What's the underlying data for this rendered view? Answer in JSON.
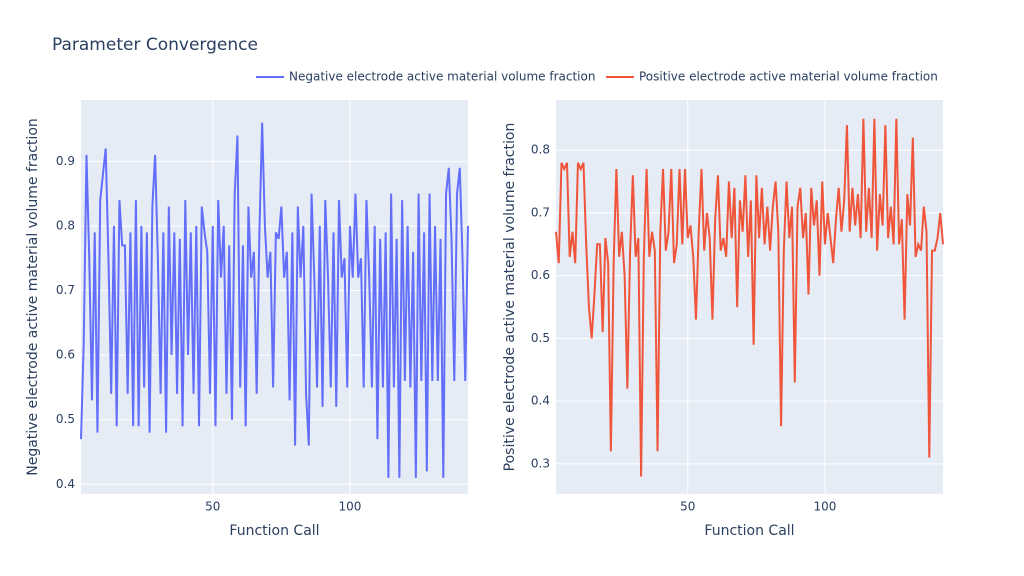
{
  "title": "Parameter Convergence",
  "chart_data": [
    {
      "type": "line",
      "x_label": "Function Call",
      "y_label": "Negative electrode active material volume fraction",
      "x": [
        2,
        3,
        4,
        5,
        6,
        7,
        8,
        9,
        10,
        11,
        12,
        13,
        14,
        15,
        16,
        17,
        18,
        19,
        20,
        21,
        22,
        23,
        24,
        25,
        26,
        27,
        28,
        29,
        30,
        31,
        32,
        33,
        34,
        35,
        36,
        37,
        38,
        39,
        40,
        41,
        42,
        43,
        44,
        45,
        46,
        47,
        48,
        49,
        50,
        51,
        52,
        53,
        54,
        55,
        56,
        57,
        58,
        59,
        60,
        61,
        62,
        63,
        64,
        65,
        66,
        67,
        68,
        69,
        70,
        71,
        72,
        73,
        74,
        75,
        76,
        77,
        78,
        79,
        80,
        81,
        82,
        83,
        84,
        85,
        86,
        87,
        88,
        89,
        90,
        91,
        92,
        93,
        94,
        95,
        96,
        97,
        98,
        99,
        100,
        101,
        102,
        103,
        104,
        105,
        106,
        107,
        108,
        109,
        110,
        111,
        112,
        113,
        114,
        115,
        116,
        117,
        118,
        119,
        120,
        121,
        122,
        123,
        124,
        125,
        126,
        127,
        128,
        129,
        130,
        131,
        132,
        133,
        134,
        135,
        136,
        137,
        138,
        139,
        140,
        141,
        142,
        143
      ],
      "series": [
        {
          "name": "Negative electrode active material volume fraction",
          "color": "#636efa",
          "values": [
            0.47,
            0.62,
            0.91,
            0.75,
            0.53,
            0.79,
            0.48,
            0.84,
            0.88,
            0.92,
            0.75,
            0.54,
            0.8,
            0.49,
            0.84,
            0.77,
            0.77,
            0.54,
            0.79,
            0.49,
            0.84,
            0.49,
            0.8,
            0.55,
            0.79,
            0.48,
            0.83,
            0.91,
            0.75,
            0.54,
            0.79,
            0.48,
            0.83,
            0.6,
            0.79,
            0.54,
            0.78,
            0.49,
            0.84,
            0.6,
            0.79,
            0.54,
            0.8,
            0.49,
            0.83,
            0.79,
            0.76,
            0.54,
            0.8,
            0.49,
            0.84,
            0.72,
            0.8,
            0.54,
            0.77,
            0.5,
            0.85,
            0.94,
            0.55,
            0.77,
            0.49,
            0.83,
            0.72,
            0.76,
            0.54,
            0.79,
            0.96,
            0.8,
            0.72,
            0.76,
            0.55,
            0.79,
            0.78,
            0.83,
            0.72,
            0.76,
            0.53,
            0.79,
            0.46,
            0.83,
            0.72,
            0.8,
            0.54,
            0.46,
            0.85,
            0.72,
            0.55,
            0.8,
            0.52,
            0.84,
            0.72,
            0.55,
            0.79,
            0.52,
            0.84,
            0.72,
            0.75,
            0.55,
            0.8,
            0.72,
            0.85,
            0.72,
            0.75,
            0.55,
            0.84,
            0.72,
            0.55,
            0.8,
            0.47,
            0.78,
            0.55,
            0.79,
            0.41,
            0.85,
            0.55,
            0.78,
            0.41,
            0.84,
            0.56,
            0.8,
            0.55,
            0.76,
            0.41,
            0.85,
            0.56,
            0.79,
            0.42,
            0.85,
            0.56,
            0.8,
            0.56,
            0.78,
            0.41,
            0.85,
            0.89,
            0.78,
            0.56,
            0.85,
            0.89,
            0.75,
            0.56,
            0.8
          ]
        }
      ],
      "xlim": [
        2,
        143
      ],
      "xticks": [
        50,
        100
      ],
      "ylim": [
        0.385,
        0.995
      ],
      "yticks": [
        0.4,
        0.5,
        0.6,
        0.7,
        0.8,
        0.9
      ],
      "grid": true
    },
    {
      "type": "line",
      "x_label": "Function Call",
      "y_label": "Positive electrode active material volume fraction",
      "x": [
        2,
        3,
        4,
        5,
        6,
        7,
        8,
        9,
        10,
        11,
        12,
        13,
        14,
        15,
        16,
        17,
        18,
        19,
        20,
        21,
        22,
        23,
        24,
        25,
        26,
        27,
        28,
        29,
        30,
        31,
        32,
        33,
        34,
        35,
        36,
        37,
        38,
        39,
        40,
        41,
        42,
        43,
        44,
        45,
        46,
        47,
        48,
        49,
        50,
        51,
        52,
        53,
        54,
        55,
        56,
        57,
        58,
        59,
        60,
        61,
        62,
        63,
        64,
        65,
        66,
        67,
        68,
        69,
        70,
        71,
        72,
        73,
        74,
        75,
        76,
        77,
        78,
        79,
        80,
        81,
        82,
        83,
        84,
        85,
        86,
        87,
        88,
        89,
        90,
        91,
        92,
        93,
        94,
        95,
        96,
        97,
        98,
        99,
        100,
        101,
        102,
        103,
        104,
        105,
        106,
        107,
        108,
        109,
        110,
        111,
        112,
        113,
        114,
        115,
        116,
        117,
        118,
        119,
        120,
        121,
        122,
        123,
        124,
        125,
        126,
        127,
        128,
        129,
        130,
        131,
        132,
        133,
        134,
        135,
        136,
        137,
        138,
        139,
        140,
        141,
        142,
        143
      ],
      "series": [
        {
          "name": "Positive electrode active material volume fraction",
          "color": "#ef553b",
          "values": [
            0.67,
            0.62,
            0.78,
            0.77,
            0.78,
            0.63,
            0.67,
            0.62,
            0.78,
            0.77,
            0.78,
            0.65,
            0.55,
            0.5,
            0.57,
            0.65,
            0.65,
            0.51,
            0.66,
            0.62,
            0.32,
            0.62,
            0.77,
            0.63,
            0.67,
            0.6,
            0.42,
            0.64,
            0.76,
            0.63,
            0.66,
            0.28,
            0.63,
            0.77,
            0.63,
            0.67,
            0.64,
            0.32,
            0.67,
            0.77,
            0.64,
            0.67,
            0.77,
            0.62,
            0.65,
            0.77,
            0.65,
            0.77,
            0.66,
            0.68,
            0.63,
            0.53,
            0.67,
            0.77,
            0.64,
            0.7,
            0.66,
            0.53,
            0.69,
            0.76,
            0.64,
            0.66,
            0.63,
            0.75,
            0.66,
            0.74,
            0.55,
            0.72,
            0.67,
            0.76,
            0.63,
            0.72,
            0.49,
            0.76,
            0.66,
            0.74,
            0.65,
            0.71,
            0.64,
            0.71,
            0.75,
            0.67,
            0.36,
            0.64,
            0.75,
            0.66,
            0.71,
            0.43,
            0.71,
            0.74,
            0.66,
            0.7,
            0.57,
            0.74,
            0.68,
            0.72,
            0.6,
            0.75,
            0.65,
            0.7,
            0.66,
            0.62,
            0.69,
            0.74,
            0.67,
            0.72,
            0.84,
            0.67,
            0.74,
            0.68,
            0.73,
            0.66,
            0.85,
            0.67,
            0.74,
            0.66,
            0.85,
            0.64,
            0.73,
            0.68,
            0.84,
            0.66,
            0.71,
            0.65,
            0.85,
            0.65,
            0.69,
            0.53,
            0.73,
            0.68,
            0.82,
            0.63,
            0.65,
            0.64,
            0.71,
            0.67,
            0.31,
            0.64,
            0.64,
            0.66,
            0.7,
            0.65
          ]
        }
      ],
      "xlim": [
        2,
        143
      ],
      "xticks": [
        50,
        100
      ],
      "ylim": [
        0.252,
        0.88
      ],
      "yticks": [
        0.3,
        0.4,
        0.5,
        0.6,
        0.7,
        0.8
      ],
      "grid": true
    }
  ]
}
